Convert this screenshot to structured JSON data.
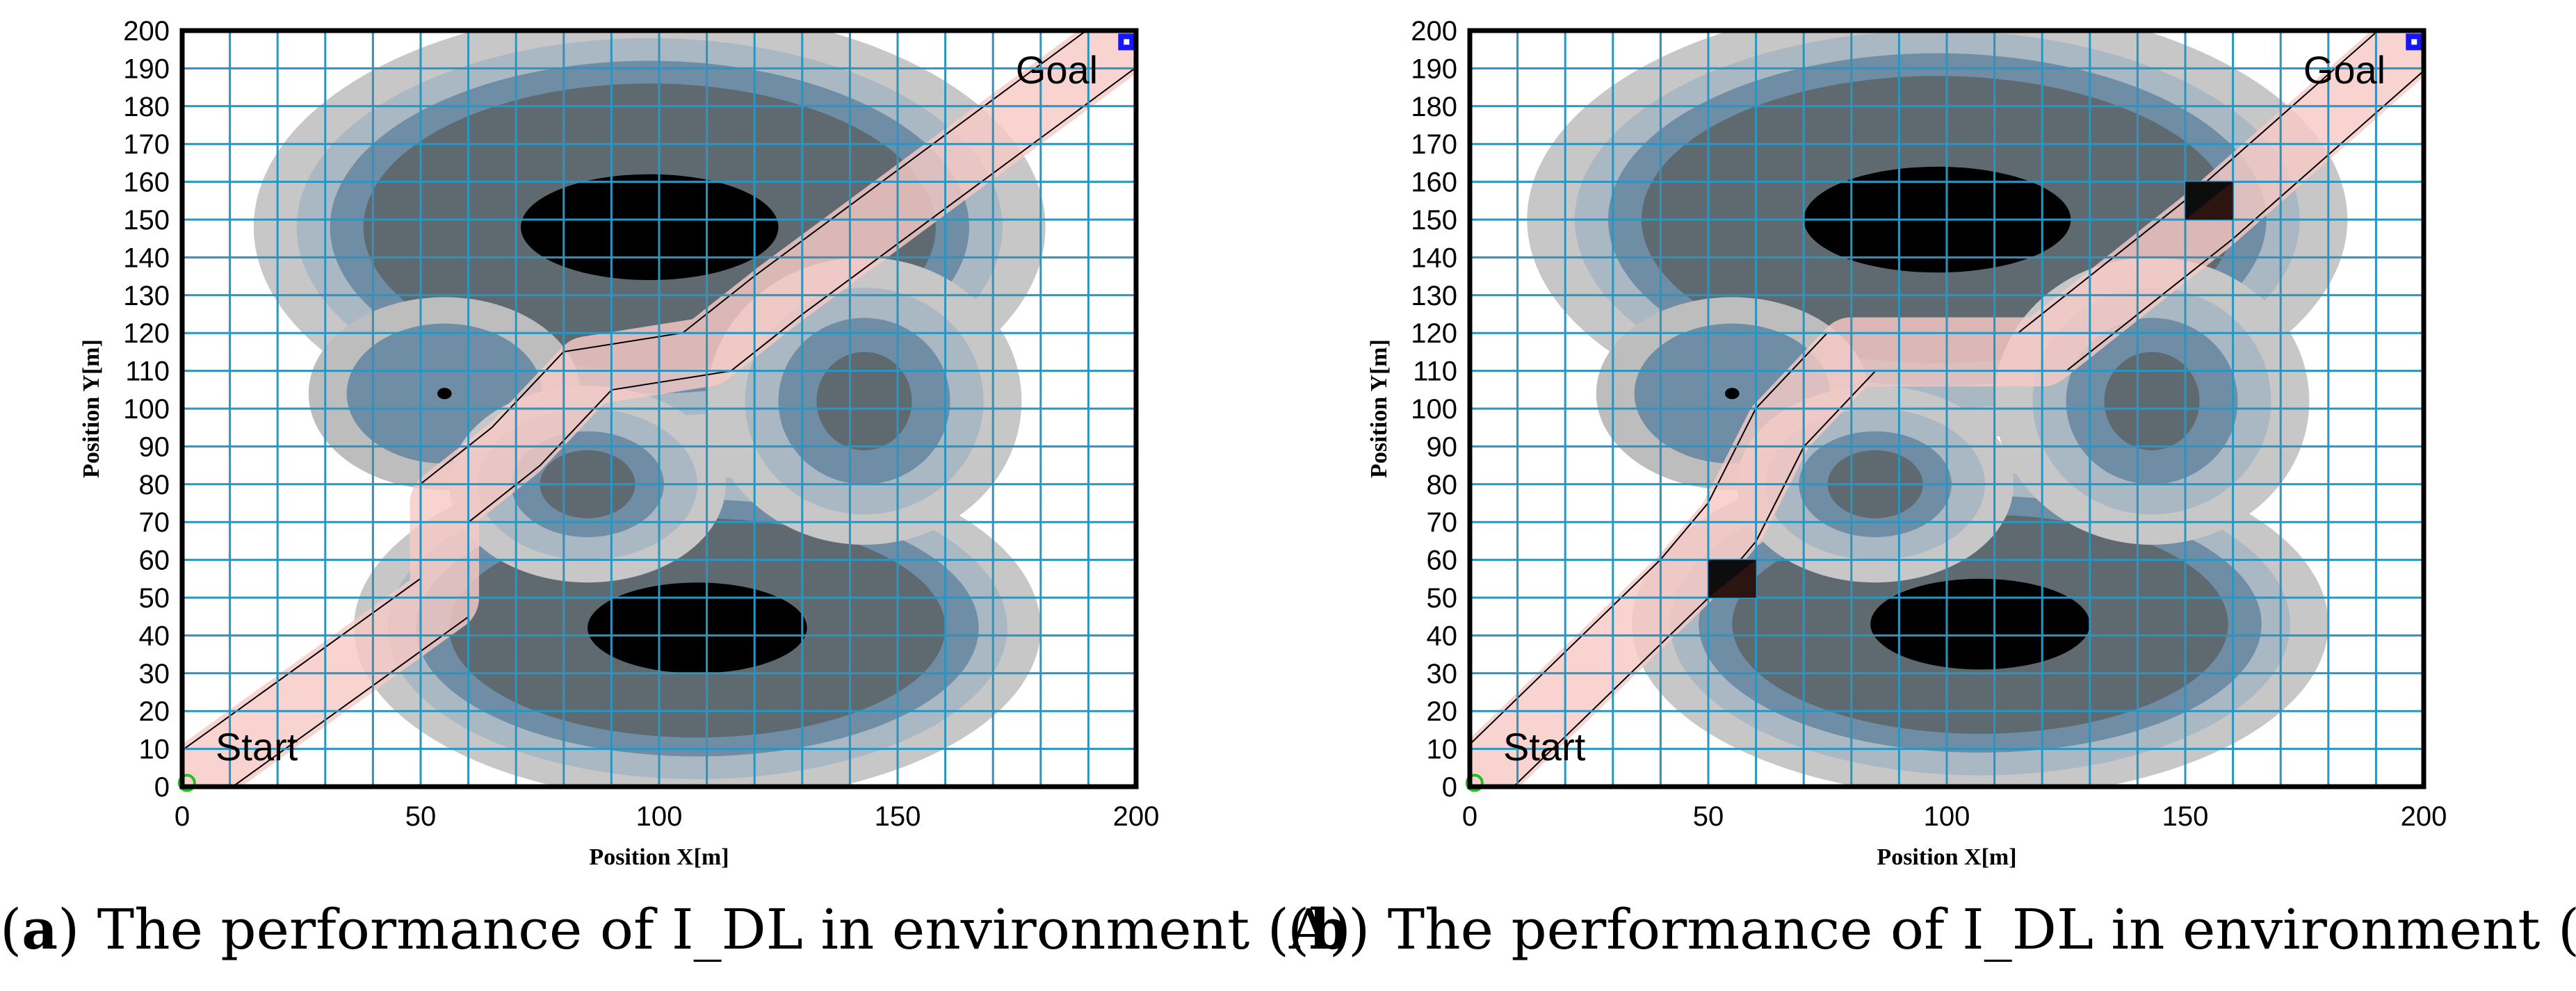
{
  "colors": {
    "grid": "#2a95c1",
    "corridor": "#f6c9c4",
    "corridor_dark": "#d9a59f",
    "obstacle_core": "#000000",
    "ring_dark_gray": "#5f6a70",
    "ring_blue": "#6f8ea6",
    "ring_light_gray": "#bdbdbd",
    "start_marker": "#1bc31b",
    "goal_marker": "#1515ff"
  },
  "chart_data": [
    {
      "type": "scatter",
      "panel_label": "a",
      "caption": "The performance of I_DL in environment (A)",
      "xlabel": "Position X[m]",
      "ylabel": "Position Y[m]",
      "xlim": [
        0,
        200
      ],
      "ylim": [
        0,
        200
      ],
      "grid": true,
      "grid_step": 10,
      "x_ticks": [
        "0",
        "50",
        "100",
        "150",
        "200"
      ],
      "y_ticks": [
        "0",
        "10",
        "20",
        "30",
        "40",
        "50",
        "60",
        "70",
        "80",
        "90",
        "100",
        "110",
        "120",
        "130",
        "140",
        "150",
        "160",
        "170",
        "180",
        "190",
        "200"
      ],
      "start": {
        "label": "Start",
        "x": 1,
        "y": 1
      },
      "goal": {
        "label": "Goal",
        "x": 198,
        "y": 197
      },
      "path": [
        [
          0,
          0
        ],
        [
          55,
          50
        ],
        [
          55,
          75
        ],
        [
          70,
          90
        ],
        [
          85,
          110
        ],
        [
          110,
          115
        ],
        [
          125,
          130
        ],
        [
          200,
          200
        ]
      ],
      "path_width": 10,
      "obstacles": [
        {
          "cx": 98,
          "cy": 148,
          "rx": 27,
          "ry": 14,
          "levels": [
            [
              33,
              24
            ],
            [
              40,
              30
            ],
            [
              47,
              36
            ],
            [
              56,
              44
            ]
          ]
        },
        {
          "cx": 108,
          "cy": 42,
          "rx": 23,
          "ry": 12,
          "levels": [
            [
              29,
              17
            ],
            [
              36,
              22
            ],
            [
              42,
              28
            ],
            [
              49,
              34
            ]
          ]
        },
        {
          "cx": 55,
          "cy": 104,
          "rx": 1.5,
          "ry": 1.5,
          "levels": [
            [
              19,
              17
            ],
            [
              27,
              24
            ]
          ]
        },
        {
          "cx": 85,
          "cy": 80,
          "rx": 0,
          "ry": 0,
          "levels": [
            [
              10,
              9
            ],
            [
              16,
              14
            ],
            [
              23,
              20
            ],
            [
              29,
              26
            ]
          ]
        },
        {
          "cx": 143,
          "cy": 102,
          "rx": 0,
          "ry": 0,
          "levels": [
            [
              10,
              13
            ],
            [
              18,
              22
            ],
            [
              25,
              30
            ],
            [
              33,
              38
            ]
          ]
        }
      ],
      "blocks": []
    },
    {
      "type": "scatter",
      "panel_label": "b",
      "caption": "The performance of I_DL in environment (B)",
      "xlabel": "Position X[m]",
      "ylabel": "Position Y[m]",
      "xlim": [
        0,
        200
      ],
      "ylim": [
        0,
        200
      ],
      "grid": true,
      "grid_step": 10,
      "x_ticks": [
        "0",
        "50",
        "100",
        "150",
        "200"
      ],
      "y_ticks": [
        "0",
        "10",
        "20",
        "30",
        "40",
        "50",
        "60",
        "70",
        "80",
        "90",
        "100",
        "110",
        "120",
        "130",
        "140",
        "150",
        "160",
        "170",
        "180",
        "190",
        "200"
      ],
      "start": {
        "label": "Start",
        "x": 1,
        "y": 1
      },
      "goal": {
        "label": "Goal",
        "x": 198,
        "y": 197
      },
      "path": [
        [
          0,
          0
        ],
        [
          45,
          55
        ],
        [
          55,
          70
        ],
        [
          65,
          95
        ],
        [
          80,
          115
        ],
        [
          120,
          115
        ],
        [
          135,
          130
        ],
        [
          155,
          150
        ],
        [
          200,
          200
        ]
      ],
      "path_width": 10,
      "obstacles": [
        {
          "cx": 98,
          "cy": 150,
          "rx": 28,
          "ry": 14,
          "levels": [
            [
              34,
              24
            ],
            [
              41,
              30
            ],
            [
              48,
              36
            ],
            [
              58,
              44
            ]
          ]
        },
        {
          "cx": 107,
          "cy": 43,
          "rx": 23,
          "ry": 12,
          "levels": [
            [
              29,
              17
            ],
            [
              36,
              22
            ],
            [
              42,
              28
            ],
            [
              50,
              34
            ]
          ]
        },
        {
          "cx": 55,
          "cy": 104,
          "rx": 1.5,
          "ry": 1.5,
          "levels": [
            [
              19,
              17
            ],
            [
              27,
              24
            ]
          ]
        },
        {
          "cx": 85,
          "cy": 80,
          "rx": 0,
          "ry": 0,
          "levels": [
            [
              10,
              9
            ],
            [
              16,
              14
            ],
            [
              23,
              20
            ],
            [
              29,
              26
            ]
          ]
        },
        {
          "cx": 143,
          "cy": 102,
          "rx": 0,
          "ry": 0,
          "levels": [
            [
              10,
              13
            ],
            [
              18,
              22
            ],
            [
              25,
              30
            ],
            [
              33,
              38
            ]
          ]
        }
      ],
      "blocks": [
        {
          "x": 50,
          "y": 50,
          "w": 10,
          "h": 10
        },
        {
          "x": 150,
          "y": 150,
          "w": 10,
          "h": 10
        }
      ]
    }
  ]
}
